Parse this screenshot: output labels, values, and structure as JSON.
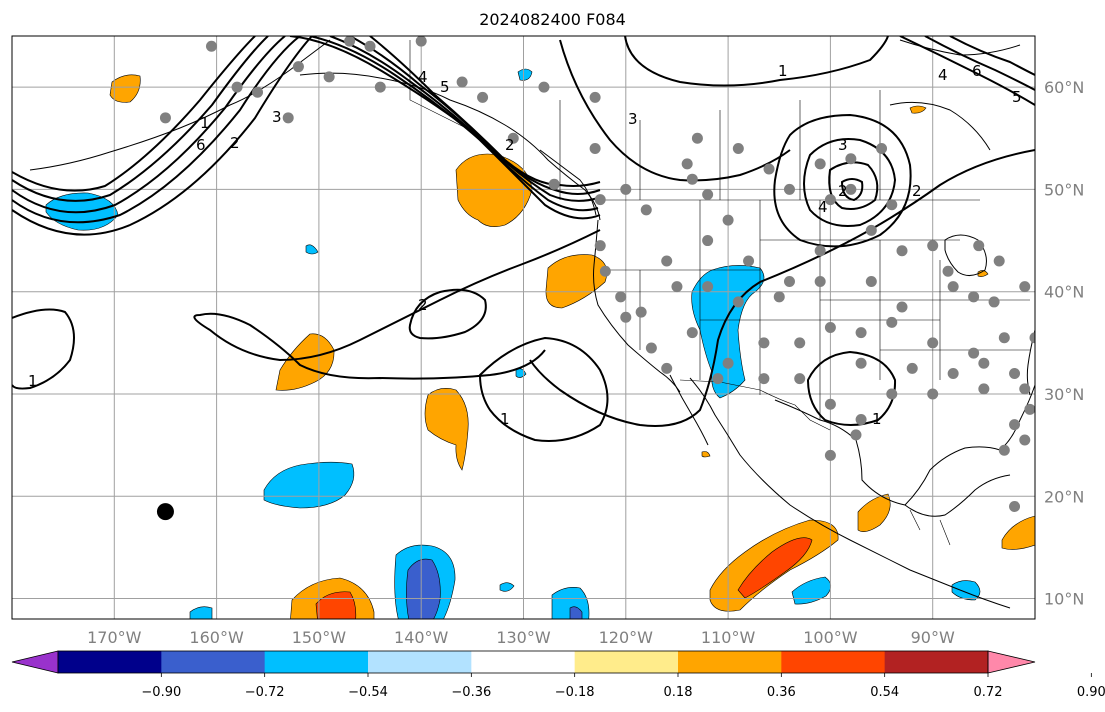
{
  "title": "2024082400 F084",
  "colors": {
    "background": "#ffffff",
    "grid": "#a0a0a0",
    "coast": "#000000",
    "contour": "#000000",
    "station_marker": "#808080",
    "special_marker": "#000000"
  },
  "map": {
    "lon_labels": [
      "170°W",
      "160°W",
      "150°W",
      "140°W",
      "130°W",
      "120°W",
      "110°W",
      "100°W",
      "90°W"
    ],
    "lon_values": [
      -170,
      -160,
      -150,
      -140,
      -130,
      -120,
      -110,
      -100,
      -90
    ],
    "lat_labels": [
      "60°N",
      "50°N",
      "40°N",
      "30°N",
      "20°N",
      "10°N"
    ],
    "lat_values": [
      60,
      50,
      40,
      30,
      20,
      10
    ],
    "extent": {
      "lon_min": -180,
      "lon_max": -80,
      "lat_min": 8,
      "lat_max": 65
    }
  },
  "colorbar": {
    "ticks": [
      "−0.90",
      "−0.72",
      "−0.54",
      "−0.36",
      "−0.18",
      "0.18",
      "0.36",
      "0.54",
      "0.72",
      "0.90"
    ],
    "colors": [
      "#9932cc",
      "#00008b",
      "#3a5fcd",
      "#00bfff",
      "#b2e2ff",
      "#ffffff",
      "#ffec8b",
      "#ffa500",
      "#ff4500",
      "#b22222",
      "#ff88aa"
    ]
  },
  "contour_labels": [
    "1",
    "2",
    "3",
    "4",
    "5",
    "6",
    "1",
    "2",
    "3",
    "4",
    "5",
    "6",
    "2",
    "1",
    "1",
    "2",
    "3",
    "4",
    "2",
    "1"
  ],
  "stations": [
    {
      "lon": -160.5,
      "lat": 64
    },
    {
      "lon": -158,
      "lat": 60
    },
    {
      "lon": -165,
      "lat": 57
    },
    {
      "lon": -152,
      "lat": 62
    },
    {
      "lon": -156,
      "lat": 59.5
    },
    {
      "lon": -153,
      "lat": 57
    },
    {
      "lon": -147,
      "lat": 64.5
    },
    {
      "lon": -145,
      "lat": 64
    },
    {
      "lon": -149,
      "lat": 61
    },
    {
      "lon": -144,
      "lat": 60
    },
    {
      "lon": -140,
      "lat": 64.5
    },
    {
      "lon": -136,
      "lat": 60.5
    },
    {
      "lon": -134,
      "lat": 59
    },
    {
      "lon": -131,
      "lat": 55
    },
    {
      "lon": -128,
      "lat": 60
    },
    {
      "lon": -123,
      "lat": 59
    },
    {
      "lon": -123,
      "lat": 54
    },
    {
      "lon": -127,
      "lat": 50.5
    },
    {
      "lon": -122.5,
      "lat": 49
    },
    {
      "lon": -120,
      "lat": 50
    },
    {
      "lon": -118,
      "lat": 48
    },
    {
      "lon": -113,
      "lat": 55
    },
    {
      "lon": -114,
      "lat": 52.5
    },
    {
      "lon": -113.5,
      "lat": 51
    },
    {
      "lon": -112,
      "lat": 49.5
    },
    {
      "lon": -110,
      "lat": 47
    },
    {
      "lon": -106,
      "lat": 52
    },
    {
      "lon": -104,
      "lat": 50
    },
    {
      "lon": -109,
      "lat": 54
    },
    {
      "lon": -101,
      "lat": 52.5
    },
    {
      "lon": -98,
      "lat": 53
    },
    {
      "lon": -95,
      "lat": 54
    },
    {
      "lon": -98,
      "lat": 50
    },
    {
      "lon": -100,
      "lat": 49
    },
    {
      "lon": -94,
      "lat": 48.5
    },
    {
      "lon": -96,
      "lat": 46
    },
    {
      "lon": -122.5,
      "lat": 44.5
    },
    {
      "lon": -116,
      "lat": 43
    },
    {
      "lon": -112,
      "lat": 45
    },
    {
      "lon": -108,
      "lat": 43
    },
    {
      "lon": -104,
      "lat": 41
    },
    {
      "lon": -101,
      "lat": 44
    },
    {
      "lon": -93,
      "lat": 44
    },
    {
      "lon": -90,
      "lat": 44.5
    },
    {
      "lon": -88.5,
      "lat": 42
    },
    {
      "lon": -85.5,
      "lat": 44.5
    },
    {
      "lon": -83.5,
      "lat": 43
    },
    {
      "lon": -122,
      "lat": 42
    },
    {
      "lon": -120.5,
      "lat": 39.5
    },
    {
      "lon": -118.5,
      "lat": 38
    },
    {
      "lon": -115,
      "lat": 40.5
    },
    {
      "lon": -112,
      "lat": 40.5
    },
    {
      "lon": -109,
      "lat": 39
    },
    {
      "lon": -105,
      "lat": 39.5
    },
    {
      "lon": -101,
      "lat": 41
    },
    {
      "lon": -96,
      "lat": 41
    },
    {
      "lon": -93,
      "lat": 38.5
    },
    {
      "lon": -88,
      "lat": 40.5
    },
    {
      "lon": -86,
      "lat": 39.5
    },
    {
      "lon": -84,
      "lat": 39
    },
    {
      "lon": -81,
      "lat": 40.5
    },
    {
      "lon": -120,
      "lat": 37.5
    },
    {
      "lon": -117.5,
      "lat": 34.5
    },
    {
      "lon": -113.5,
      "lat": 36
    },
    {
      "lon": -110,
      "lat": 33
    },
    {
      "lon": -106.5,
      "lat": 35
    },
    {
      "lon": -103,
      "lat": 35
    },
    {
      "lon": -100,
      "lat": 36.5
    },
    {
      "lon": -97,
      "lat": 36
    },
    {
      "lon": -94,
      "lat": 37
    },
    {
      "lon": -90,
      "lat": 35
    },
    {
      "lon": -86,
      "lat": 34
    },
    {
      "lon": -83,
      "lat": 35.5
    },
    {
      "lon": -80,
      "lat": 35.5
    },
    {
      "lon": -116,
      "lat": 32.5
    },
    {
      "lon": -111,
      "lat": 31.5
    },
    {
      "lon": -106.5,
      "lat": 31.5
    },
    {
      "lon": -103,
      "lat": 31.5
    },
    {
      "lon": -97,
      "lat": 33
    },
    {
      "lon": -92,
      "lat": 32.5
    },
    {
      "lon": -88,
      "lat": 32
    },
    {
      "lon": -85,
      "lat": 33
    },
    {
      "lon": -82,
      "lat": 32
    },
    {
      "lon": -81,
      "lat": 30.5
    },
    {
      "lon": -85,
      "lat": 30.5
    },
    {
      "lon": -90,
      "lat": 30
    },
    {
      "lon": -94,
      "lat": 30
    },
    {
      "lon": -97,
      "lat": 27.5
    },
    {
      "lon": -100,
      "lat": 29
    },
    {
      "lon": -80.5,
      "lat": 28.5
    },
    {
      "lon": -82,
      "lat": 27
    },
    {
      "lon": -81,
      "lat": 25.5
    },
    {
      "lon": -83,
      "lat": 24.5
    },
    {
      "lon": -82,
      "lat": 19
    },
    {
      "lon": -97.5,
      "lat": 26
    },
    {
      "lon": -100,
      "lat": 24
    }
  ],
  "special_markers": [
    {
      "name": "hawaii-marker",
      "lon": -165,
      "lat": 18.5
    }
  ]
}
